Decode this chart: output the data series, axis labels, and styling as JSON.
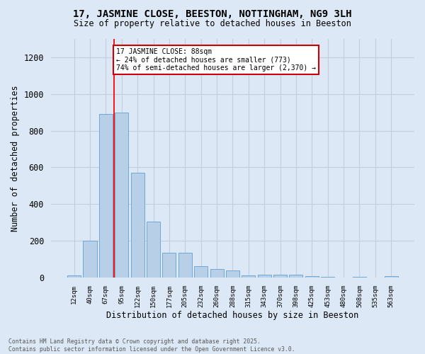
{
  "title_line1": "17, JASMINE CLOSE, BEESTON, NOTTINGHAM, NG9 3LH",
  "title_line2": "Size of property relative to detached houses in Beeston",
  "xlabel": "Distribution of detached houses by size in Beeston",
  "ylabel": "Number of detached properties",
  "categories": [
    "12sqm",
    "40sqm",
    "67sqm",
    "95sqm",
    "122sqm",
    "150sqm",
    "177sqm",
    "205sqm",
    "232sqm",
    "260sqm",
    "288sqm",
    "315sqm",
    "343sqm",
    "370sqm",
    "398sqm",
    "425sqm",
    "453sqm",
    "480sqm",
    "508sqm",
    "535sqm",
    "563sqm"
  ],
  "values": [
    10,
    200,
    890,
    900,
    570,
    305,
    135,
    135,
    60,
    48,
    40,
    12,
    15,
    14,
    14,
    7,
    2,
    1,
    2,
    1,
    8
  ],
  "bar_color": "#b8cfe8",
  "bar_edge_color": "#6fa8d6",
  "bg_color": "#dce8f5",
  "grid_color": "#c8d8ea",
  "red_line_x": 2.5,
  "annotation_line1": "17 JASMINE CLOSE: 88sqm",
  "annotation_line2": "← 24% of detached houses are smaller (773)",
  "annotation_line3": "74% of semi-detached houses are larger (2,370) →",
  "annotation_box_color": "#ffffff",
  "annotation_box_edge_color": "#cc0000",
  "footer_text": "Contains HM Land Registry data © Crown copyright and database right 2025.\nContains public sector information licensed under the Open Government Licence v3.0.",
  "ylim": [
    0,
    1300
  ],
  "yticks": [
    0,
    200,
    400,
    600,
    800,
    1000,
    1200
  ]
}
